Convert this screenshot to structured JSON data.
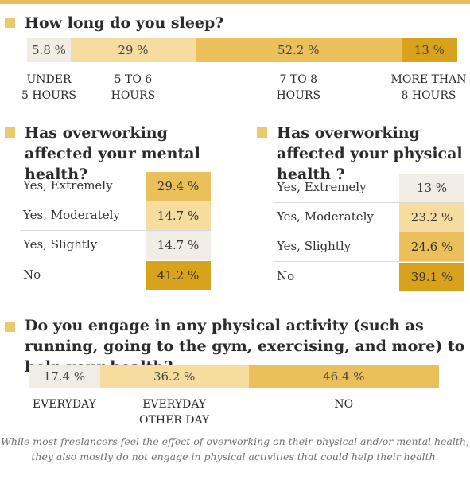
{
  "colors": {
    "accent": "#e9bd55",
    "square": "#eec96b"
  },
  "chart_data": [
    {
      "type": "bar",
      "title": "How long do you sleep?",
      "categories": [
        "UNDER\n5 HOURS",
        "5 TO 6\nHOURS",
        "7 TO 8\nHOURS",
        "MORE THAN\n8 HOURS"
      ],
      "values": [
        5.8,
        29,
        52.2,
        13
      ],
      "value_labels": [
        "5.8 %",
        "29 %",
        "52.2 %",
        "13 %"
      ],
      "colors": [
        "#f2ede4",
        "#f6dc9f",
        "#ebc05b",
        "#d9a21c"
      ]
    },
    {
      "type": "table",
      "title": "Has overworking affected your mental health?",
      "categories": [
        "Yes, Extremely",
        "Yes, Moderately",
        "Yes, Slightly",
        "No"
      ],
      "values": [
        29.4,
        14.7,
        14.7,
        41.2
      ],
      "value_labels": [
        "29.4 %",
        "14.7 %",
        "14.7 %",
        "41.2 %"
      ],
      "colors": [
        "#ebc05b",
        "#f6dc9f",
        "#f2ede4",
        "#d9a21c"
      ]
    },
    {
      "type": "table",
      "title": "Has overworking affected your physical health ?",
      "categories": [
        "Yes, Extremely",
        "Yes, Moderately",
        "Yes, Slightly",
        "No"
      ],
      "values": [
        13,
        23.2,
        24.6,
        39.1
      ],
      "value_labels": [
        "13 %",
        "23.2 %",
        "24.6 %",
        "39.1 %"
      ],
      "colors": [
        "#f2ede4",
        "#f6dc9f",
        "#ebc05b",
        "#d9a21c"
      ]
    },
    {
      "type": "bar",
      "title": "Do you engage in any physical activity (such as running, going to the gym, exercising, and more) to help your health?",
      "categories": [
        "EVERYDAY",
        "EVERYDAY\nOTHER DAY",
        "NO"
      ],
      "values": [
        17.4,
        36.2,
        46.4
      ],
      "value_labels": [
        "17.4 %",
        "36.2 %",
        "46.4 %"
      ],
      "colors": [
        "#f2ede4",
        "#f6dc9f",
        "#ebc05b"
      ]
    }
  ],
  "footnote": "While most freelancers feel the effect of overworking on their physical and/or mental health, they also mostly do not engage in physical activities that could help their health."
}
